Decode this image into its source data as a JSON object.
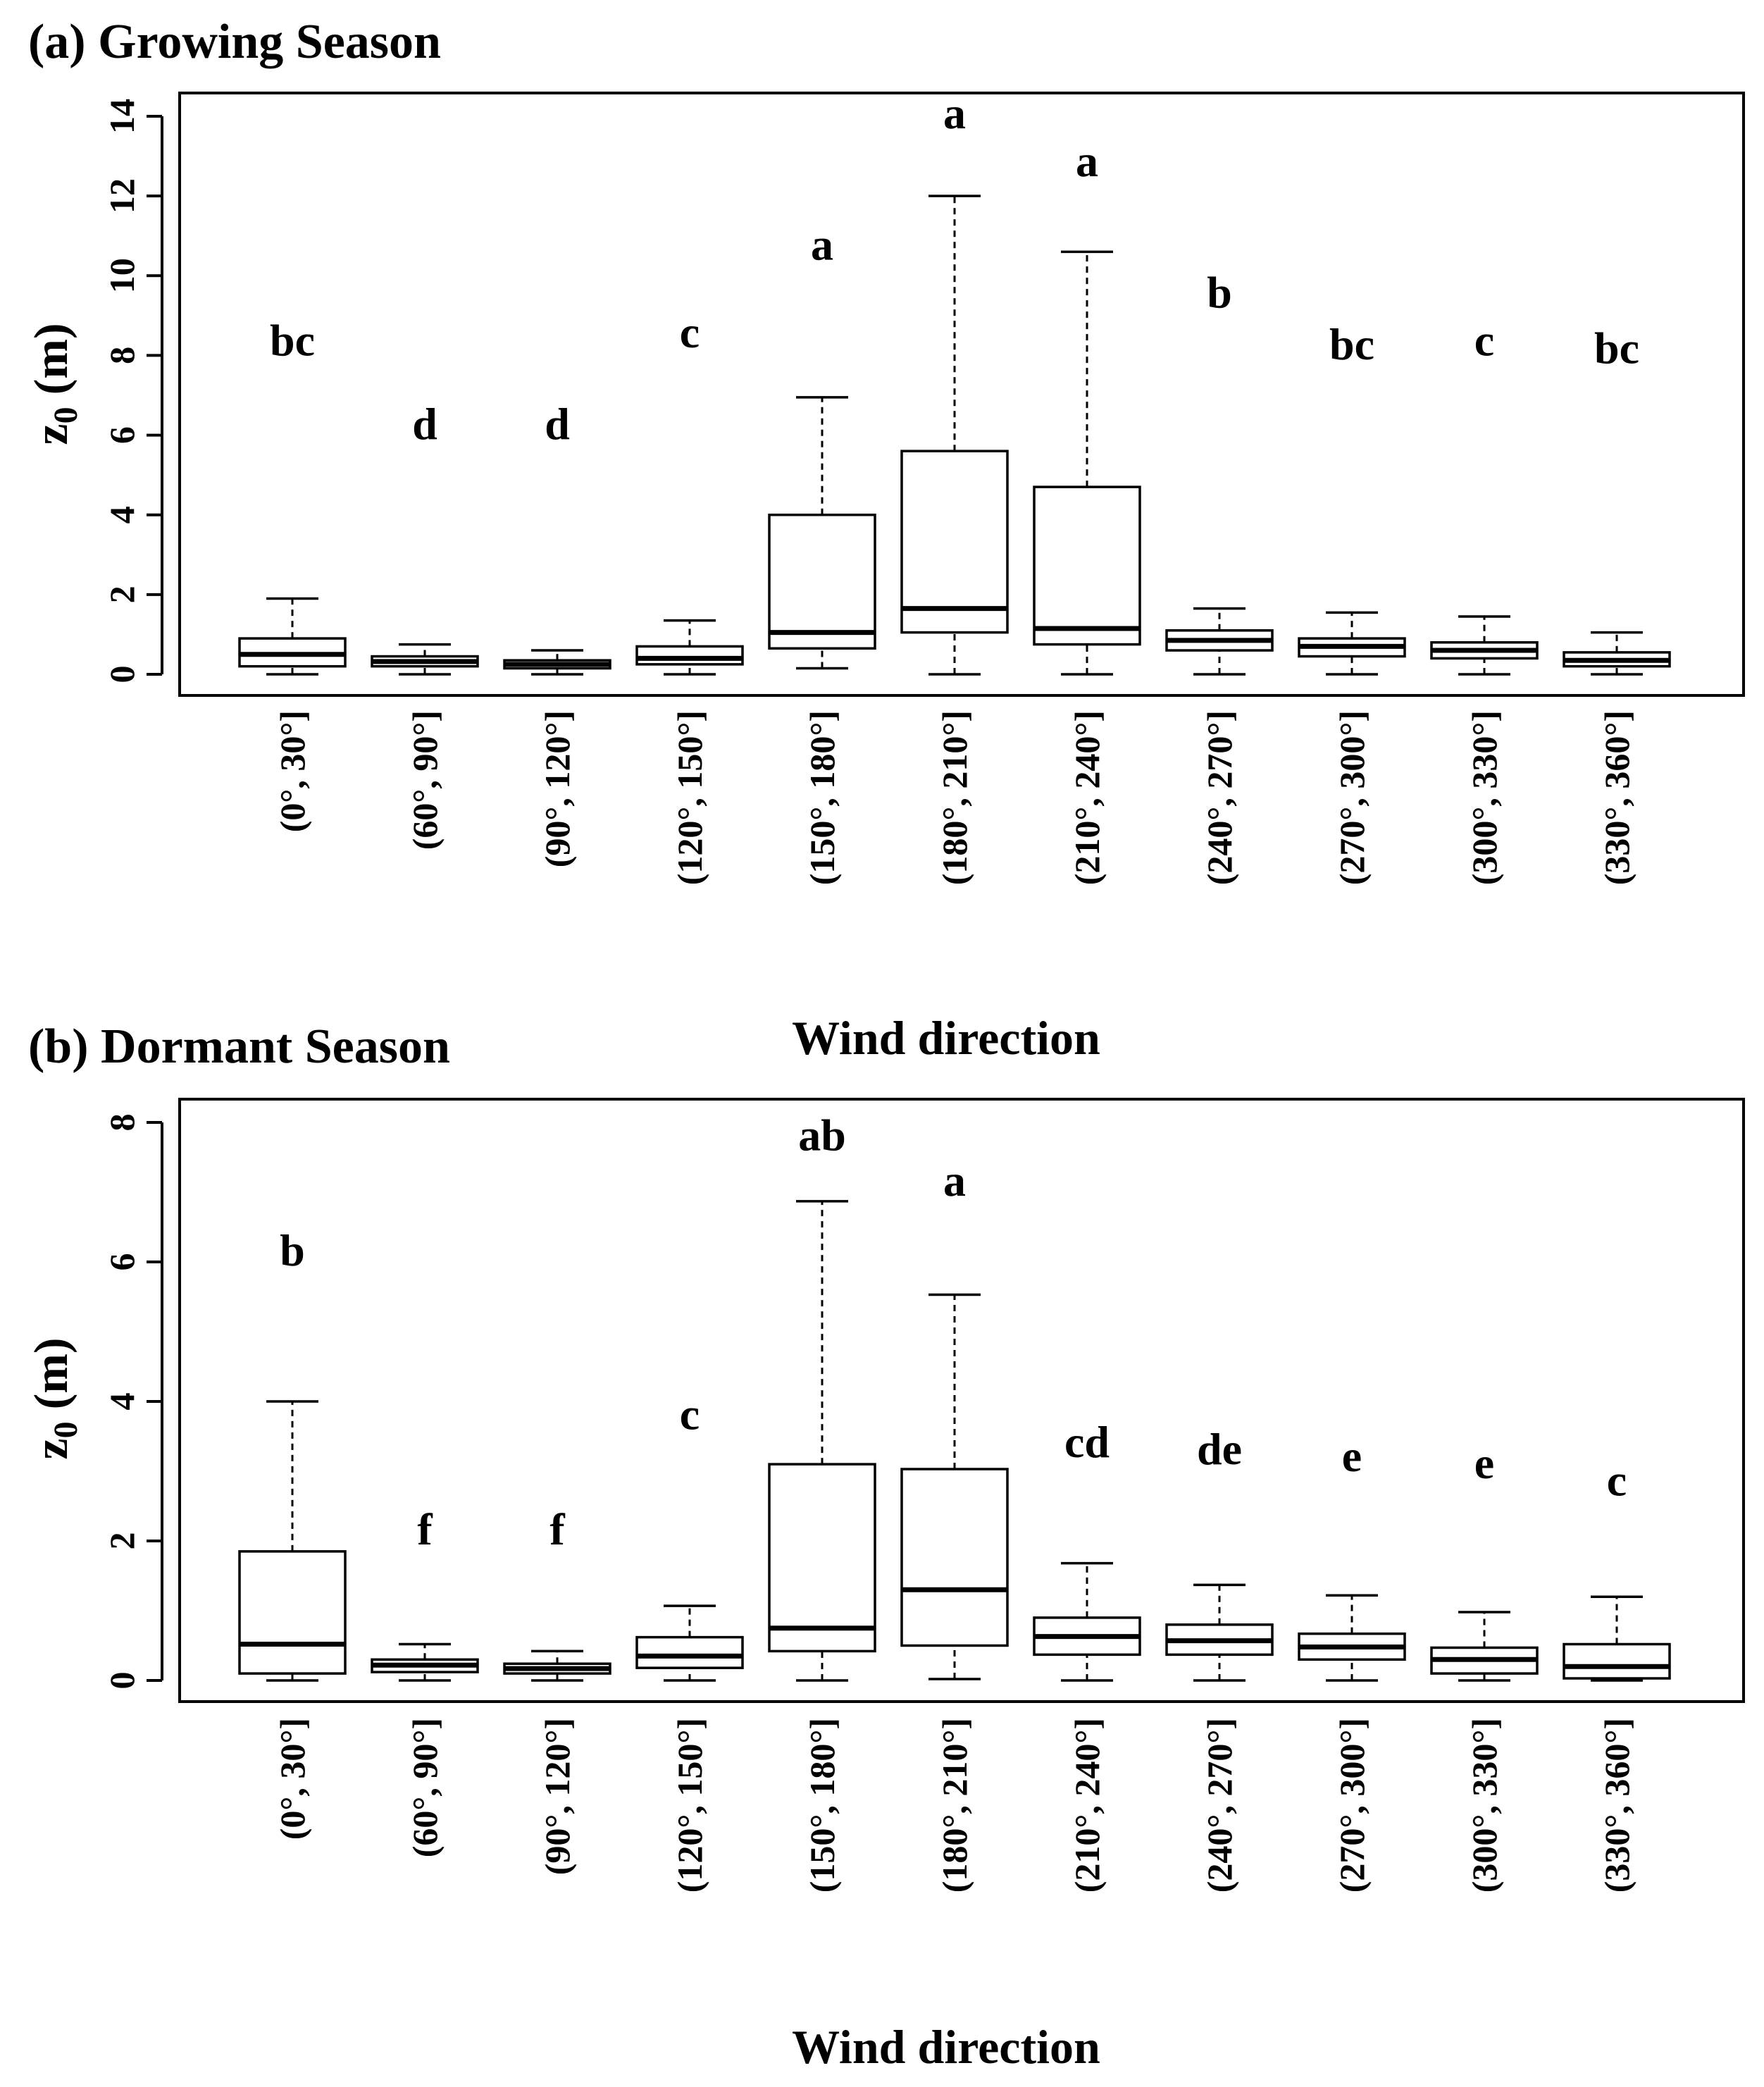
{
  "chart_data": [
    {
      "type": "box",
      "title": "(a) Growing Season",
      "xlabel": "Wind direction",
      "ylabel": "z0 (m)",
      "ylim": [
        0,
        14
      ],
      "yticks": [
        0,
        2,
        4,
        6,
        8,
        10,
        12,
        14
      ],
      "categories": [
        "(0°, 30°]",
        "(60°, 90°]",
        "(90°, 120°]",
        "(120°, 150°]",
        "(150°, 180°]",
        "(180°, 210°]",
        "(210°, 240°]",
        "(240°, 270°]",
        "(270°, 300°]",
        "(300°, 330°]",
        "(330°, 360°]"
      ],
      "boxes": [
        {
          "min": 0.0,
          "q1": 0.2,
          "median": 0.5,
          "q3": 0.9,
          "max": 1.9
        },
        {
          "min": 0.0,
          "q1": 0.2,
          "median": 0.32,
          "q3": 0.45,
          "max": 0.75
        },
        {
          "min": 0.0,
          "q1": 0.15,
          "median": 0.25,
          "q3": 0.35,
          "max": 0.6
        },
        {
          "min": 0.0,
          "q1": 0.25,
          "median": 0.4,
          "q3": 0.7,
          "max": 1.35
        },
        {
          "min": 0.15,
          "q1": 0.65,
          "median": 1.05,
          "q3": 4.0,
          "max": 6.95
        },
        {
          "min": 0.0,
          "q1": 1.05,
          "median": 1.65,
          "q3": 5.6,
          "max": 12.0
        },
        {
          "min": 0.0,
          "q1": 0.75,
          "median": 1.15,
          "q3": 4.7,
          "max": 10.6
        },
        {
          "min": 0.0,
          "q1": 0.6,
          "median": 0.85,
          "q3": 1.1,
          "max": 1.65
        },
        {
          "min": 0.0,
          "q1": 0.45,
          "median": 0.7,
          "q3": 0.9,
          "max": 1.55
        },
        {
          "min": 0.0,
          "q1": 0.4,
          "median": 0.6,
          "q3": 0.8,
          "max": 1.45
        },
        {
          "min": 0.0,
          "q1": 0.2,
          "median": 0.35,
          "q3": 0.55,
          "max": 1.05
        }
      ],
      "letters": [
        {
          "text": "bc",
          "y": 8.0
        },
        {
          "text": "d",
          "y": 5.9
        },
        {
          "text": "d",
          "y": 5.9
        },
        {
          "text": "c",
          "y": 8.2
        },
        {
          "text": "a",
          "y": 10.4
        },
        {
          "text": "a",
          "y": 13.7
        },
        {
          "text": "a",
          "y": 12.5
        },
        {
          "text": "b",
          "y": 9.2
        },
        {
          "text": "bc",
          "y": 7.9
        },
        {
          "text": "c",
          "y": 8.0
        },
        {
          "text": "bc",
          "y": 7.8
        }
      ]
    },
    {
      "type": "box",
      "title": "(b) Dormant Season",
      "xlabel": "Wind direction",
      "ylabel": "z0 (m)",
      "ylim": [
        0,
        8
      ],
      "yticks": [
        0,
        2,
        4,
        6,
        8
      ],
      "categories": [
        "(0°, 30°]",
        "(60°, 90°]",
        "(90°, 120°]",
        "(120°, 150°]",
        "(150°, 180°]",
        "(180°, 210°]",
        "(210°, 240°]",
        "(240°, 270°]",
        "(270°, 300°]",
        "(300°, 330°]",
        "(330°, 360°]"
      ],
      "boxes": [
        {
          "min": 0.0,
          "q1": 0.1,
          "median": 0.52,
          "q3": 1.85,
          "max": 4.0
        },
        {
          "min": 0.0,
          "q1": 0.12,
          "median": 0.22,
          "q3": 0.3,
          "max": 0.52
        },
        {
          "min": 0.0,
          "q1": 0.1,
          "median": 0.17,
          "q3": 0.24,
          "max": 0.42
        },
        {
          "min": 0.0,
          "q1": 0.18,
          "median": 0.35,
          "q3": 0.62,
          "max": 1.07
        },
        {
          "min": 0.0,
          "q1": 0.42,
          "median": 0.75,
          "q3": 3.1,
          "max": 6.87
        },
        {
          "min": 0.02,
          "q1": 0.5,
          "median": 1.3,
          "q3": 3.03,
          "max": 5.53
        },
        {
          "min": 0.0,
          "q1": 0.37,
          "median": 0.63,
          "q3": 0.9,
          "max": 1.68
        },
        {
          "min": 0.0,
          "q1": 0.37,
          "median": 0.57,
          "q3": 0.8,
          "max": 1.37
        },
        {
          "min": 0.0,
          "q1": 0.3,
          "median": 0.48,
          "q3": 0.67,
          "max": 1.22
        },
        {
          "min": 0.0,
          "q1": 0.1,
          "median": 0.3,
          "q3": 0.47,
          "max": 0.98
        },
        {
          "min": 0.0,
          "q1": 0.03,
          "median": 0.2,
          "q3": 0.52,
          "max": 1.2
        }
      ],
      "letters": [
        {
          "text": "b",
          "y": 5.95
        },
        {
          "text": "f",
          "y": 1.95
        },
        {
          "text": "f",
          "y": 1.95
        },
        {
          "text": "c",
          "y": 3.6
        },
        {
          "text": "ab",
          "y": 7.6
        },
        {
          "text": "a",
          "y": 6.95
        },
        {
          "text": "cd",
          "y": 3.2
        },
        {
          "text": "de",
          "y": 3.1
        },
        {
          "text": "e",
          "y": 3.0
        },
        {
          "text": "e",
          "y": 2.9
        },
        {
          "text": "c",
          "y": 2.65
        }
      ]
    }
  ]
}
